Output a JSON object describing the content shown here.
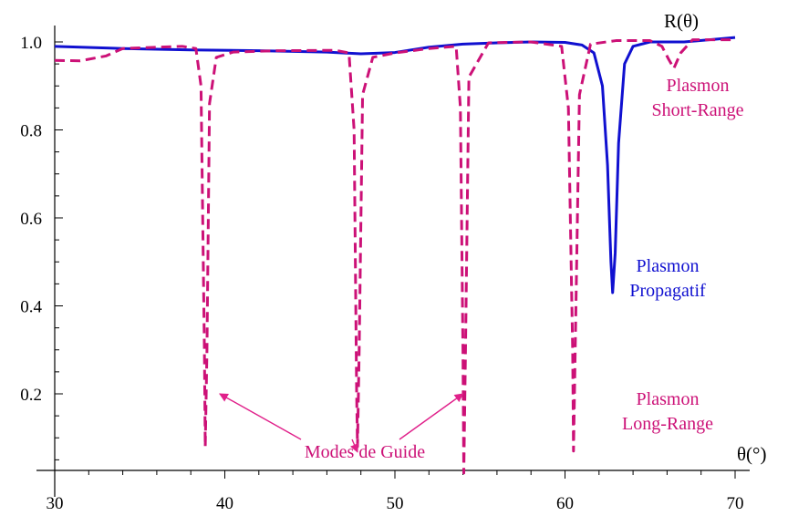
{
  "chart_data": {
    "type": "line",
    "xlabel": "θ(°)",
    "ylabel": "R(θ)",
    "xlim": [
      30,
      70
    ],
    "ylim": [
      0,
      1.02
    ],
    "x_ticks": [
      30,
      40,
      50,
      60,
      70
    ],
    "x_tick_labels": [
      "30",
      "40",
      "50",
      "60",
      "70"
    ],
    "y_ticks": [
      0.2,
      0.4,
      0.6,
      0.8,
      1.0
    ],
    "y_tick_labels": [
      "0.2",
      "0.4",
      "0.6",
      "0.8",
      "1.0"
    ],
    "grid": false,
    "series": [
      {
        "style": "solid",
        "color": "#1010d0",
        "points": [
          [
            30,
            0.99
          ],
          [
            34,
            0.985
          ],
          [
            38,
            0.982
          ],
          [
            42,
            0.98
          ],
          [
            46,
            0.977
          ],
          [
            48,
            0.973
          ],
          [
            50,
            0.976
          ],
          [
            52,
            0.988
          ],
          [
            54,
            0.995
          ],
          [
            56,
            0.998
          ],
          [
            58,
            1.0
          ],
          [
            60,
            0.999
          ],
          [
            61,
            0.993
          ],
          [
            61.7,
            0.975
          ],
          [
            62.2,
            0.9
          ],
          [
            62.5,
            0.72
          ],
          [
            62.7,
            0.5
          ],
          [
            62.8,
            0.43
          ],
          [
            62.95,
            0.52
          ],
          [
            63.15,
            0.77
          ],
          [
            63.5,
            0.95
          ],
          [
            64,
            0.99
          ],
          [
            65,
            1.0
          ],
          [
            67,
            1.0
          ],
          [
            70,
            1.01
          ]
        ]
      },
      {
        "style": "dashed",
        "color": "#cc1177",
        "points": [
          [
            30,
            0.958
          ],
          [
            31.5,
            0.957
          ],
          [
            33,
            0.968
          ],
          [
            34,
            0.985
          ],
          [
            36,
            0.988
          ],
          [
            37.5,
            0.99
          ],
          [
            38.3,
            0.985
          ],
          [
            38.6,
            0.9
          ],
          [
            38.8,
            0.3
          ],
          [
            38.85,
            0.08
          ],
          [
            38.95,
            0.3
          ],
          [
            39.1,
            0.86
          ],
          [
            39.5,
            0.965
          ],
          [
            40.5,
            0.977
          ],
          [
            43,
            0.98
          ],
          [
            46.5,
            0.981
          ],
          [
            47.3,
            0.975
          ],
          [
            47.6,
            0.8
          ],
          [
            47.75,
            0.2
          ],
          [
            47.8,
            0.08
          ],
          [
            47.9,
            0.3
          ],
          [
            48.1,
            0.88
          ],
          [
            48.7,
            0.965
          ],
          [
            50,
            0.975
          ],
          [
            52,
            0.985
          ],
          [
            53.6,
            0.99
          ],
          [
            53.85,
            0.85
          ],
          [
            54,
            0.3
          ],
          [
            54.05,
            0.02
          ],
          [
            54.15,
            0.3
          ],
          [
            54.35,
            0.92
          ],
          [
            55.5,
            0.998
          ],
          [
            58,
            1.0
          ],
          [
            59.8,
            0.99
          ],
          [
            60.2,
            0.85
          ],
          [
            60.45,
            0.3
          ],
          [
            60.5,
            0.07
          ],
          [
            60.6,
            0.3
          ],
          [
            60.85,
            0.88
          ],
          [
            61.5,
            0.995
          ],
          [
            63,
            1.003
          ],
          [
            65,
            1.003
          ],
          [
            65.7,
            0.99
          ],
          [
            66.1,
            0.96
          ],
          [
            66.4,
            0.94
          ],
          [
            66.8,
            0.975
          ],
          [
            67.5,
            1.005
          ],
          [
            70,
            1.005
          ]
        ]
      }
    ],
    "annotations": [
      {
        "lines": [
          "Plasmon",
          "Short-Range"
        ],
        "color": "#cc1177"
      },
      {
        "lines": [
          "Plasmon",
          "Propagatif"
        ],
        "color": "#1010d0"
      },
      {
        "lines": [
          "Plasmon",
          "Long-Range"
        ],
        "color": "#cc1177"
      },
      {
        "lines": [
          "Modes de Guide"
        ],
        "color": "#cc1177"
      }
    ],
    "arrow_targets": [
      [
        39.7,
        0.2
      ],
      [
        47.8,
        0.08
      ],
      [
        54,
        0.2
      ]
    ]
  }
}
